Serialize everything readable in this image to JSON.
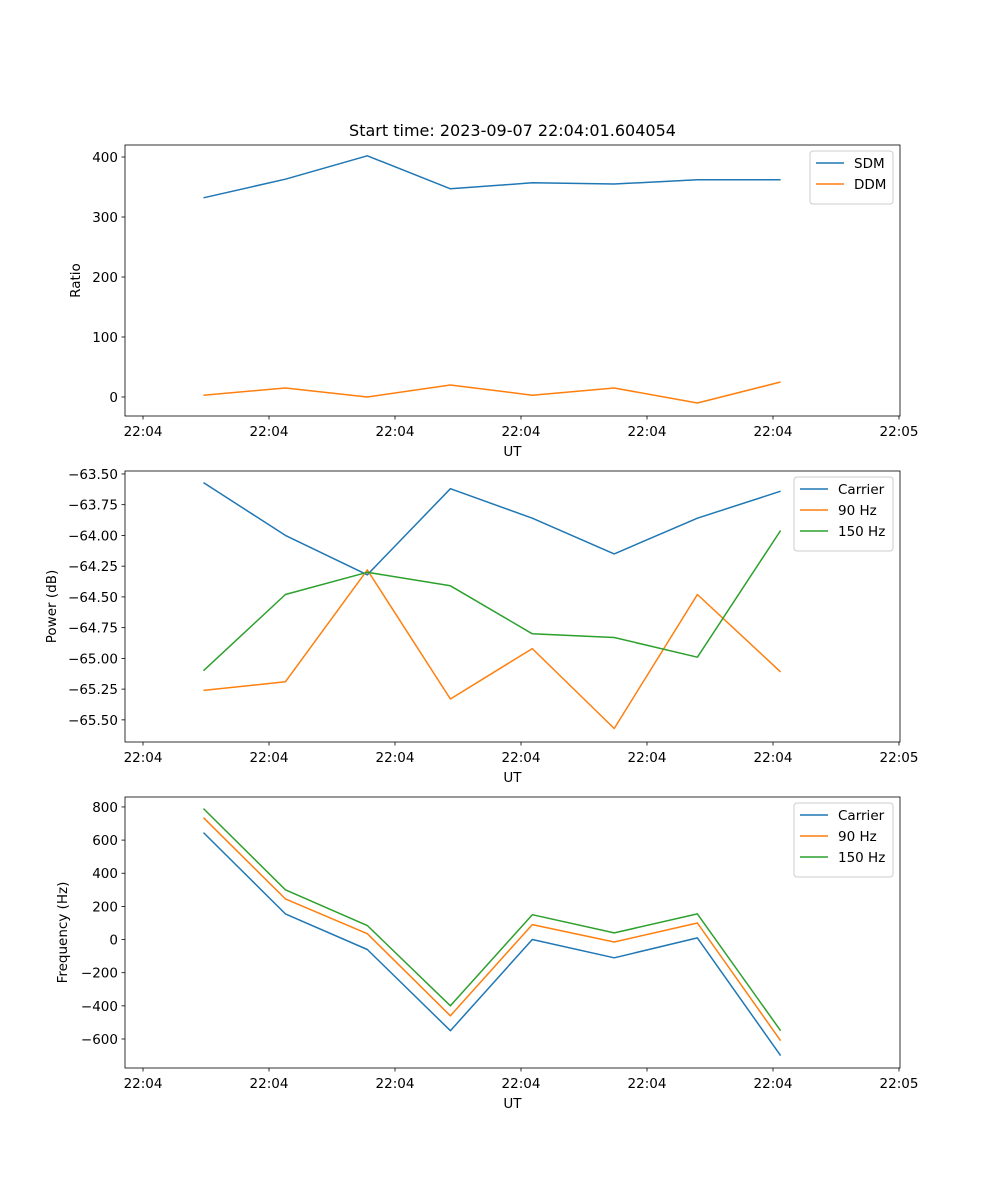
{
  "chart_data": [
    {
      "type": "line",
      "title": "Start time: 2023-09-07 22:04:01.604054",
      "xlabel": "UT",
      "ylabel": "Ratio",
      "x_unit": "seconds after 22:04:00",
      "x": [
        4.8,
        11.3,
        17.8,
        24.4,
        30.9,
        37.4,
        44.0,
        50.6
      ],
      "xlim": [
        -1.43,
        60.08
      ],
      "ylim": [
        -31.7,
        420
      ],
      "xticks": [
        0,
        10,
        20,
        30,
        40,
        50,
        60
      ],
      "xtick_labels": [
        "22:04",
        "22:04",
        "22:04",
        "22:04",
        "22:04",
        "22:04",
        "22:05"
      ],
      "yticks": [
        0,
        100,
        200,
        300,
        400
      ],
      "ytick_labels": [
        "0",
        "100",
        "200",
        "300",
        "400"
      ],
      "legend": "top-right",
      "series": [
        {
          "name": "SDM",
          "color": "#1f77b4",
          "values": [
            332,
            363,
            402,
            347,
            357,
            355,
            362,
            362
          ]
        },
        {
          "name": "DDM",
          "color": "#ff7f0e",
          "values": [
            3,
            15,
            0,
            20,
            3,
            15,
            -10,
            25
          ]
        }
      ]
    },
    {
      "type": "line",
      "title": "",
      "xlabel": "UT",
      "ylabel": "Power (dB)",
      "x": [
        4.8,
        11.3,
        17.8,
        24.4,
        30.9,
        37.4,
        44.0,
        50.6
      ],
      "xlim": [
        -1.43,
        60.08
      ],
      "ylim": [
        -65.68,
        -63.476
      ],
      "xticks": [
        0,
        10,
        20,
        30,
        40,
        50,
        60
      ],
      "xtick_labels": [
        "22:04",
        "22:04",
        "22:04",
        "22:04",
        "22:04",
        "22:04",
        "22:05"
      ],
      "yticks": [
        -65.5,
        -65.25,
        -65.0,
        -64.75,
        -64.5,
        -64.25,
        -64.0,
        -63.75,
        -63.5
      ],
      "ytick_labels": [
        "−65.50",
        "−65.25",
        "−65.00",
        "−64.75",
        "−64.50",
        "−64.25",
        "−64.00",
        "−63.75",
        "−63.50"
      ],
      "legend": "top-right",
      "series": [
        {
          "name": "Carrier",
          "color": "#1f77b4",
          "values": [
            -63.57,
            -64.0,
            -64.32,
            -63.62,
            -63.86,
            -64.15,
            -63.86,
            -63.64
          ]
        },
        {
          "name": "90 Hz",
          "color": "#ff7f0e",
          "values": [
            -65.26,
            -65.19,
            -64.28,
            -65.33,
            -64.92,
            -65.57,
            -64.48,
            -65.11
          ]
        },
        {
          "name": "150 Hz",
          "color": "#2ca02c",
          "values": [
            -65.1,
            -64.48,
            -64.3,
            -64.41,
            -64.8,
            -64.83,
            -64.99,
            -63.96
          ]
        }
      ]
    },
    {
      "type": "line",
      "title": "",
      "xlabel": "UT",
      "ylabel": "Frequency (Hz)",
      "x": [
        4.8,
        11.3,
        17.8,
        24.4,
        30.9,
        37.4,
        44.0,
        50.6
      ],
      "xlim": [
        -1.43,
        60.08
      ],
      "ylim": [
        -775,
        860
      ],
      "xticks": [
        0,
        10,
        20,
        30,
        40,
        50,
        60
      ],
      "xtick_labels": [
        "22:04",
        "22:04",
        "22:04",
        "22:04",
        "22:04",
        "22:04",
        "22:05"
      ],
      "yticks": [
        -600,
        -400,
        -200,
        0,
        200,
        400,
        600,
        800
      ],
      "ytick_labels": [
        "−600",
        "−400",
        "−200",
        "0",
        "200",
        "400",
        "600",
        "800"
      ],
      "legend": "top-right",
      "series": [
        {
          "name": "Carrier",
          "color": "#1f77b4",
          "values": [
            645,
            155,
            -60,
            -550,
            0,
            -110,
            10,
            -700
          ]
        },
        {
          "name": "90 Hz",
          "color": "#ff7f0e",
          "values": [
            735,
            245,
            35,
            -460,
            90,
            -15,
            100,
            -610
          ]
        },
        {
          "name": "150 Hz",
          "color": "#2ca02c",
          "values": [
            790,
            300,
            85,
            -400,
            150,
            40,
            155,
            -550
          ]
        }
      ]
    }
  ]
}
